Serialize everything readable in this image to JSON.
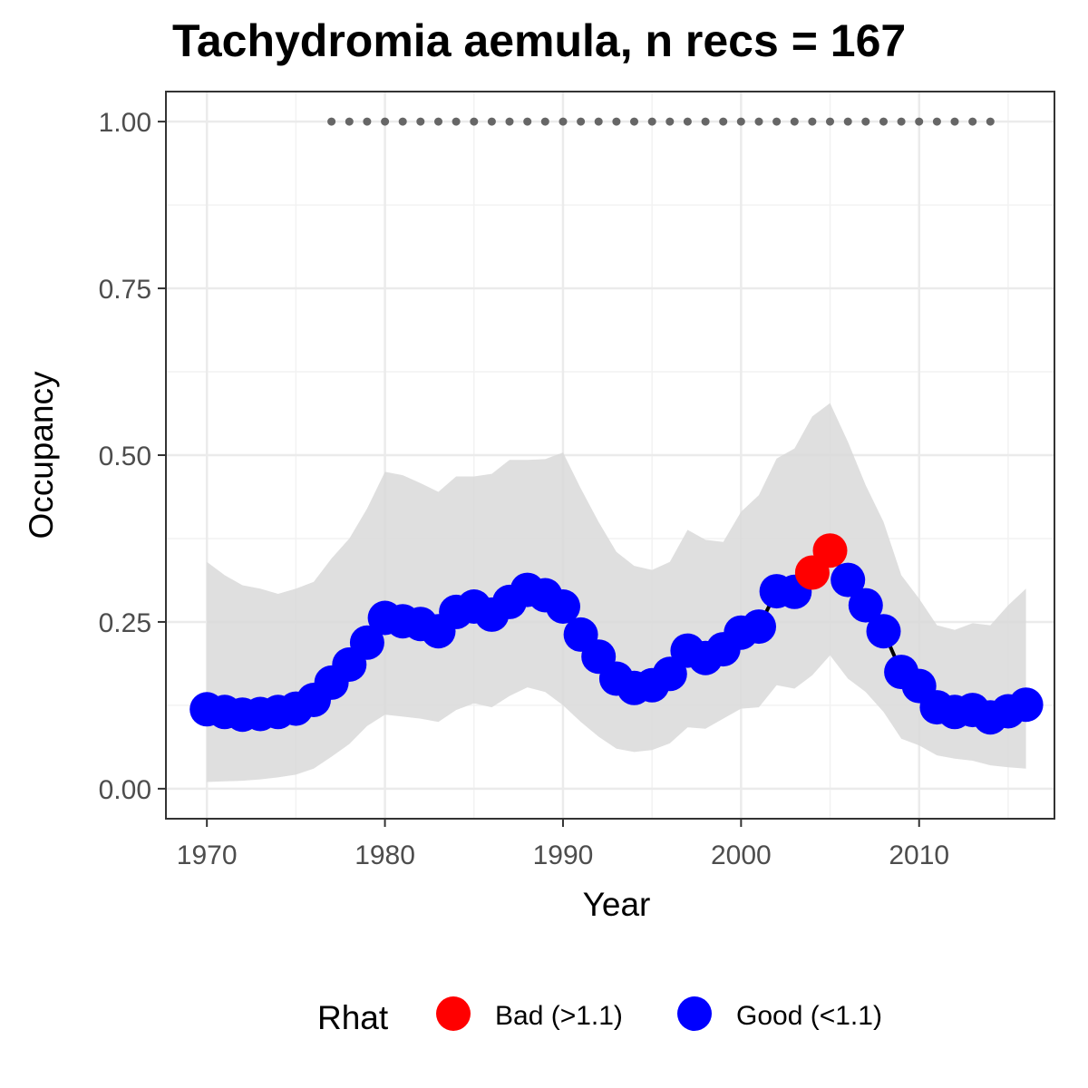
{
  "chart_data": {
    "type": "line",
    "title": "Tachydromia aemula, n recs = 167",
    "xlabel": "Year",
    "ylabel": "Occupancy",
    "xlim": [
      1967.7,
      2017.6
    ],
    "ylim": [
      -0.045,
      1.045
    ],
    "x_ticks": [
      1970,
      1980,
      1990,
      2000,
      2010
    ],
    "x_tick_labels": [
      "1970",
      "1980",
      "1990",
      "2000",
      "2010"
    ],
    "y_ticks": [
      0,
      0.25,
      0.5,
      0.75,
      1.0
    ],
    "y_tick_labels": [
      "0.00",
      "0.25",
      "0.50",
      "0.75",
      "1.00"
    ],
    "grid": true,
    "legend": {
      "title": "Rhat",
      "position": "bottom",
      "entries": [
        {
          "label": "Bad (>1.1)",
          "color": "#ff0000"
        },
        {
          "label": "Good (<1.1)",
          "color": "#0000ff"
        }
      ]
    },
    "colors": {
      "good": "#0000ff",
      "bad": "#ff0000",
      "ribbon": "#d9d9d9",
      "line": "#000000",
      "reference_points": "#666666"
    },
    "years": [
      1970,
      1971,
      1972,
      1973,
      1974,
      1975,
      1976,
      1977,
      1978,
      1979,
      1980,
      1981,
      1982,
      1983,
      1984,
      1985,
      1986,
      1987,
      1988,
      1989,
      1990,
      1991,
      1992,
      1993,
      1994,
      1995,
      1996,
      1997,
      1998,
      1999,
      2000,
      2001,
      2002,
      2003,
      2004,
      2005,
      2006,
      2007,
      2008,
      2009,
      2010,
      2011,
      2012,
      2013,
      2014,
      2015,
      2016
    ],
    "occupancy": [
      0.119,
      0.115,
      0.111,
      0.112,
      0.115,
      0.12,
      0.133,
      0.159,
      0.186,
      0.219,
      0.256,
      0.251,
      0.247,
      0.236,
      0.265,
      0.273,
      0.261,
      0.28,
      0.298,
      0.29,
      0.273,
      0.231,
      0.198,
      0.165,
      0.151,
      0.155,
      0.172,
      0.207,
      0.196,
      0.209,
      0.234,
      0.243,
      0.296,
      0.295,
      0.324,
      0.357,
      0.313,
      0.275,
      0.236,
      0.175,
      0.154,
      0.122,
      0.115,
      0.118,
      0.107,
      0.116,
      0.126
    ],
    "lower": [
      0.01,
      0.011,
      0.012,
      0.014,
      0.017,
      0.021,
      0.03,
      0.048,
      0.067,
      0.094,
      0.111,
      0.108,
      0.105,
      0.1,
      0.118,
      0.128,
      0.122,
      0.139,
      0.152,
      0.145,
      0.125,
      0.1,
      0.078,
      0.06,
      0.055,
      0.058,
      0.068,
      0.092,
      0.09,
      0.105,
      0.12,
      0.122,
      0.155,
      0.15,
      0.17,
      0.2,
      0.165,
      0.145,
      0.115,
      0.075,
      0.065,
      0.05,
      0.045,
      0.042,
      0.035,
      0.032,
      0.03
    ],
    "upper": [
      0.34,
      0.32,
      0.305,
      0.3,
      0.292,
      0.3,
      0.31,
      0.345,
      0.375,
      0.42,
      0.475,
      0.47,
      0.458,
      0.445,
      0.468,
      0.468,
      0.472,
      0.493,
      0.493,
      0.494,
      0.504,
      0.45,
      0.4,
      0.355,
      0.334,
      0.328,
      0.34,
      0.388,
      0.373,
      0.37,
      0.415,
      0.44,
      0.495,
      0.51,
      0.558,
      0.578,
      0.52,
      0.455,
      0.4,
      0.32,
      0.285,
      0.245,
      0.238,
      0.248,
      0.245,
      0.275,
      0.3
    ],
    "rhat_bad_years": [
      2004,
      2005
    ],
    "reference_years": [
      1977,
      1978,
      1979,
      1980,
      1981,
      1982,
      1983,
      1984,
      1985,
      1986,
      1987,
      1988,
      1989,
      1990,
      1991,
      1992,
      1993,
      1994,
      1995,
      1996,
      1997,
      1998,
      1999,
      2000,
      2001,
      2002,
      2003,
      2004,
      2005,
      2006,
      2007,
      2008,
      2009,
      2010,
      2011,
      2012,
      2013,
      2014
    ],
    "reference_value": 1.0
  }
}
